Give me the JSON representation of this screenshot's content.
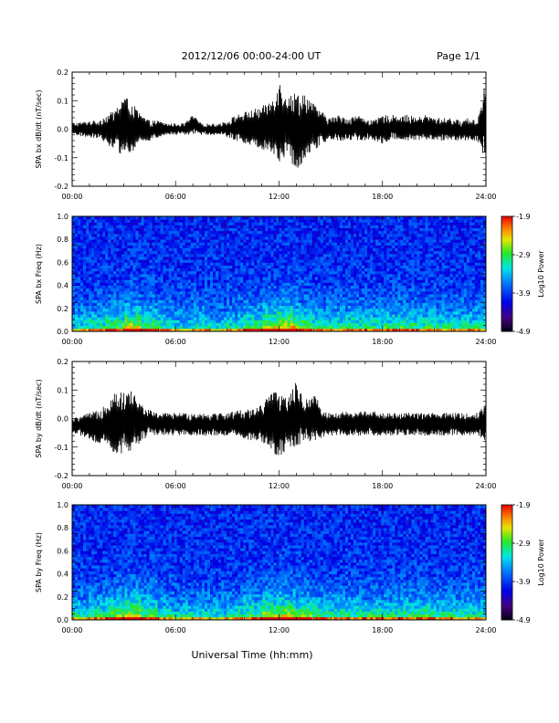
{
  "header": {
    "title": "2012/12/06  00:00-24:00 UT",
    "page": "Page 1/1"
  },
  "footer": {
    "xlabel": "Universal Time (hh:mm)"
  },
  "chart_data": [
    {
      "type": "line",
      "id": "bx_dbdt",
      "ylabel": "SPA bx dB/dt (nT/sec)",
      "xlim": [
        0,
        24
      ],
      "ylim": [
        -0.2,
        0.2
      ],
      "x_tick_labels": [
        "00:00",
        "06:00",
        "12:00",
        "18:00",
        "24:00"
      ],
      "y_tick_values": [
        -0.2,
        -0.1,
        0.0,
        0.1,
        0.2
      ],
      "y_tick_labels": [
        "-0.2",
        "-0.1",
        "0.0",
        "0.1",
        "0.2"
      ],
      "series": [
        {
          "x": [
            0,
            1,
            1.5,
            2,
            2.5,
            3,
            3.5,
            4,
            4.5,
            5,
            5.5,
            6,
            6.5,
            7,
            7.5,
            8,
            8.5,
            9,
            9.5,
            10,
            10.5,
            11,
            11.5,
            12,
            12.5,
            13,
            13.5,
            14,
            14.5,
            15,
            15.5,
            16,
            16.5,
            17,
            17.5,
            18,
            18.5,
            19,
            19.5,
            20,
            20.5,
            21,
            21.5,
            22,
            22.5,
            23,
            23.5,
            24
          ],
          "upper": [
            0.02,
            0.03,
            0.03,
            0.05,
            0.07,
            0.12,
            0.09,
            0.05,
            0.03,
            0.03,
            0.02,
            0.02,
            0.02,
            0.05,
            0.02,
            0.02,
            0.02,
            0.03,
            0.05,
            0.06,
            0.07,
            0.08,
            0.1,
            0.17,
            0.12,
            0.13,
            0.13,
            0.09,
            0.06,
            0.04,
            0.05,
            0.04,
            0.05,
            0.04,
            0.03,
            0.05,
            0.05,
            0.05,
            0.05,
            0.04,
            0.05,
            0.04,
            0.04,
            0.04,
            0.03,
            0.04,
            0.03,
            0.18
          ],
          "lower": [
            -0.02,
            -0.03,
            -0.03,
            -0.05,
            -0.08,
            -0.09,
            -0.08,
            -0.05,
            -0.04,
            -0.03,
            -0.02,
            -0.02,
            -0.02,
            -0.02,
            -0.02,
            -0.02,
            -0.02,
            -0.03,
            -0.04,
            -0.05,
            -0.06,
            -0.07,
            -0.08,
            -0.12,
            -0.09,
            -0.15,
            -0.1,
            -0.08,
            -0.05,
            -0.04,
            -0.04,
            -0.04,
            -0.04,
            -0.04,
            -0.04,
            -0.05,
            -0.04,
            -0.04,
            -0.04,
            -0.04,
            -0.04,
            -0.04,
            -0.04,
            -0.04,
            -0.04,
            -0.04,
            -0.04,
            -0.12
          ]
        }
      ]
    },
    {
      "type": "heatmap",
      "id": "bx_spectrogram",
      "ylabel": "SPA bx Freq (Hz)",
      "xlim": [
        0,
        24
      ],
      "ylim": [
        0.0,
        1.0
      ],
      "x_tick_labels": [
        "00:00",
        "06:00",
        "12:00",
        "18:00",
        "24:00"
      ],
      "y_tick_values": [
        0.0,
        0.2,
        0.4,
        0.6,
        0.8,
        1.0
      ],
      "y_tick_labels": [
        "0.0",
        "0.2",
        "0.4",
        "0.6",
        "0.8",
        "1.0"
      ],
      "colorbar": {
        "label": "Log10 Power",
        "range": [
          -4.9,
          -1.9
        ],
        "tick_values": [
          -4.9,
          -3.9,
          -2.9,
          -1.9
        ],
        "tick_labels": [
          "-4.9",
          "-3.9",
          "-2.9",
          "-1.9"
        ]
      },
      "activity": [
        0.25,
        0.35,
        0.55,
        0.75,
        0.55,
        0.35,
        0.25,
        0.35,
        0.25,
        0.35,
        0.5,
        0.75,
        0.85,
        0.6,
        0.45,
        0.4,
        0.4,
        0.4,
        0.45,
        0.45,
        0.4,
        0.35,
        0.35,
        0.35
      ]
    },
    {
      "type": "line",
      "id": "by_dbdt",
      "ylabel": "SPA by dB/dt (nT/sec)",
      "xlim": [
        0,
        24
      ],
      "ylim": [
        -0.2,
        0.2
      ],
      "x_tick_labels": [
        "00:00",
        "06:00",
        "12:00",
        "18:00",
        "24:00"
      ],
      "y_tick_values": [
        -0.2,
        -0.1,
        0.0,
        0.1,
        0.2
      ],
      "y_tick_labels": [
        "-0.2",
        "-0.1",
        "0.0",
        "0.1",
        "0.2"
      ],
      "series": [
        {
          "x": [
            0,
            1,
            1.5,
            2,
            2.5,
            3,
            3.5,
            4,
            4.5,
            5,
            5.5,
            6,
            6.5,
            7,
            7.5,
            8,
            8.5,
            9,
            9.5,
            10,
            10.5,
            11,
            11.5,
            12,
            12.5,
            13,
            13.5,
            14,
            14.5,
            15,
            15.5,
            16,
            16.5,
            17,
            17.5,
            18,
            18.5,
            19,
            19.5,
            20,
            20.5,
            21,
            21.5,
            22,
            22.5,
            23,
            23.5,
            24
          ],
          "upper": [
            0.0,
            0.02,
            0.03,
            0.06,
            0.1,
            0.09,
            0.1,
            0.05,
            0.03,
            0.02,
            0.02,
            0.02,
            0.02,
            0.02,
            0.02,
            0.02,
            0.02,
            0.02,
            0.03,
            0.03,
            0.04,
            0.05,
            0.09,
            0.1,
            0.07,
            0.13,
            0.06,
            0.1,
            0.03,
            0.02,
            0.02,
            0.03,
            0.02,
            0.03,
            0.03,
            0.02,
            0.02,
            0.02,
            0.02,
            0.02,
            0.02,
            0.02,
            0.02,
            0.02,
            0.02,
            0.02,
            0.02,
            0.06
          ],
          "lower": [
            -0.05,
            -0.07,
            -0.09,
            -0.1,
            -0.13,
            -0.12,
            -0.11,
            -0.08,
            -0.06,
            -0.06,
            -0.06,
            -0.06,
            -0.06,
            -0.06,
            -0.06,
            -0.06,
            -0.06,
            -0.06,
            -0.06,
            -0.07,
            -0.08,
            -0.09,
            -0.1,
            -0.16,
            -0.1,
            -0.1,
            -0.08,
            -0.08,
            -0.07,
            -0.06,
            -0.06,
            -0.06,
            -0.06,
            -0.06,
            -0.06,
            -0.06,
            -0.06,
            -0.06,
            -0.06,
            -0.06,
            -0.06,
            -0.06,
            -0.06,
            -0.06,
            -0.06,
            -0.06,
            -0.06,
            -0.08
          ]
        }
      ]
    },
    {
      "type": "heatmap",
      "id": "by_spectrogram",
      "ylabel": "SPA by Freq (Hz)",
      "xlim": [
        0,
        24
      ],
      "ylim": [
        0.0,
        1.0
      ],
      "x_tick_labels": [
        "00:00",
        "06:00",
        "12:00",
        "18:00",
        "24:00"
      ],
      "y_tick_values": [
        0.0,
        0.2,
        0.4,
        0.6,
        0.8,
        1.0
      ],
      "y_tick_labels": [
        "0.0",
        "0.2",
        "0.4",
        "0.6",
        "0.8",
        "1.0"
      ],
      "colorbar": {
        "label": "Log10 Power",
        "range": [
          -4.9,
          -1.9
        ],
        "tick_values": [
          -4.9,
          -3.9,
          -2.9,
          -1.9
        ],
        "tick_labels": [
          "-4.9",
          "-3.9",
          "-2.9",
          "-1.9"
        ]
      },
      "activity": [
        0.3,
        0.4,
        0.6,
        0.75,
        0.55,
        0.35,
        0.25,
        0.3,
        0.25,
        0.35,
        0.45,
        0.7,
        0.75,
        0.55,
        0.45,
        0.4,
        0.4,
        0.4,
        0.4,
        0.45,
        0.45,
        0.4,
        0.35,
        0.35
      ]
    }
  ]
}
